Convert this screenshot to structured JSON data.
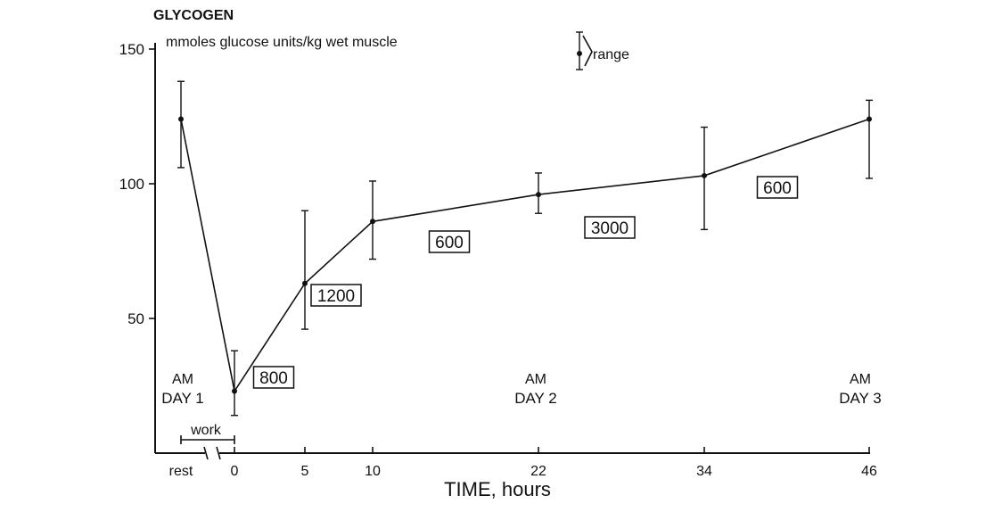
{
  "chart_data": {
    "type": "line",
    "title": "GLYCOGEN",
    "ylabel": "mmoles glucose units/kg wet muscle",
    "xlabel": "TIME, hours",
    "ylim": [
      0,
      150
    ],
    "y_ticks": [
      50,
      100,
      150
    ],
    "x_tick_labels": [
      "rest",
      "0",
      "5",
      "10",
      "22",
      "34",
      "46"
    ],
    "series": [
      {
        "name": "Glycogen",
        "points": [
          {
            "x": "rest",
            "y": 124,
            "low": 106,
            "high": 138
          },
          {
            "x": 0,
            "y": 23,
            "low": 14,
            "high": 38
          },
          {
            "x": 5,
            "y": 63,
            "low": 46,
            "high": 90
          },
          {
            "x": 10,
            "y": 86,
            "low": 72,
            "high": 101
          },
          {
            "x": 22,
            "y": 96,
            "low": 89,
            "high": 104
          },
          {
            "x": 34,
            "y": 103,
            "low": 83,
            "high": 121
          },
          {
            "x": 46,
            "y": 124,
            "low": 102,
            "high": 131
          }
        ]
      }
    ],
    "annotations": {
      "boxed_values": [
        "800",
        "1200",
        "600",
        "3000",
        "600"
      ],
      "day_markers": [
        {
          "line1": "AM",
          "line2": "DAY 1"
        },
        {
          "line1": "AM",
          "line2": "DAY 2"
        },
        {
          "line1": "AM",
          "line2": "DAY 3"
        }
      ],
      "work_label": "work",
      "range_legend": "range"
    }
  }
}
